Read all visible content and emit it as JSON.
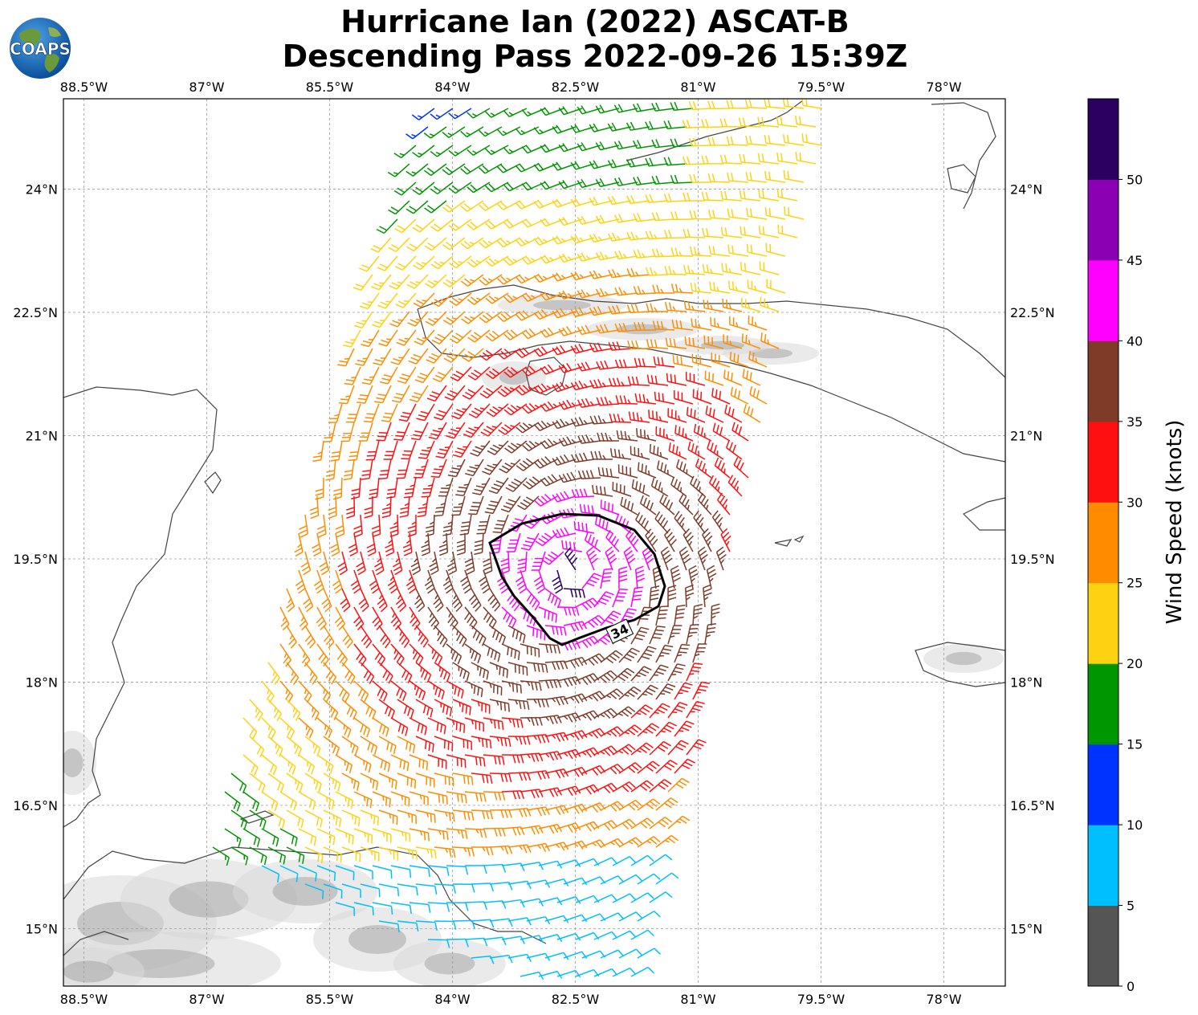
{
  "title": {
    "line1": "Hurricane Ian (2022) ASCAT-B",
    "line2": "Descending Pass 2022-09-26 15:39Z"
  },
  "logo": {
    "text": "COAPS",
    "icon": "globe-icon"
  },
  "map": {
    "projection": "plate-carree",
    "lon_range": [
      -88.75,
      -77.25
    ],
    "lat_range": [
      14.3,
      25.1
    ],
    "lon_ticks": [
      "88.5°W",
      "87°W",
      "85.5°W",
      "84°W",
      "82.5°W",
      "81°W",
      "79.5°W",
      "78°W"
    ],
    "lat_ticks": [
      "24°N",
      "22.5°N",
      "21°N",
      "19.5°N",
      "18°N",
      "16.5°N",
      "15°N"
    ],
    "contour_label": "34",
    "storm_center": {
      "lon": -82.55,
      "lat": 19.35
    },
    "land_color": "#ffffff",
    "terrain_shading": "grayscale"
  },
  "colorbar": {
    "label": "Wind Speed (knots)",
    "ticks": [
      "0",
      "5",
      "10",
      "15",
      "20",
      "25",
      "30",
      "35",
      "40",
      "45",
      "50"
    ],
    "bins": [
      {
        "min": 0,
        "max": 5,
        "color": "#555555"
      },
      {
        "min": 5,
        "max": 10,
        "color": "#00bfff"
      },
      {
        "min": 10,
        "max": 15,
        "color": "#0033ff"
      },
      {
        "min": 15,
        "max": 20,
        "color": "#009600"
      },
      {
        "min": 20,
        "max": 25,
        "color": "#ffd211"
      },
      {
        "min": 25,
        "max": 30,
        "color": "#ff8c00"
      },
      {
        "min": 30,
        "max": 35,
        "color": "#ff1010"
      },
      {
        "min": 35,
        "max": 40,
        "color": "#7f3a28"
      },
      {
        "min": 40,
        "max": 45,
        "color": "#ff00ff"
      },
      {
        "min": 45,
        "max": 50,
        "color": "#8b00b3"
      },
      {
        "min": 50,
        "max": 55,
        "color": "#2a0060"
      }
    ]
  }
}
